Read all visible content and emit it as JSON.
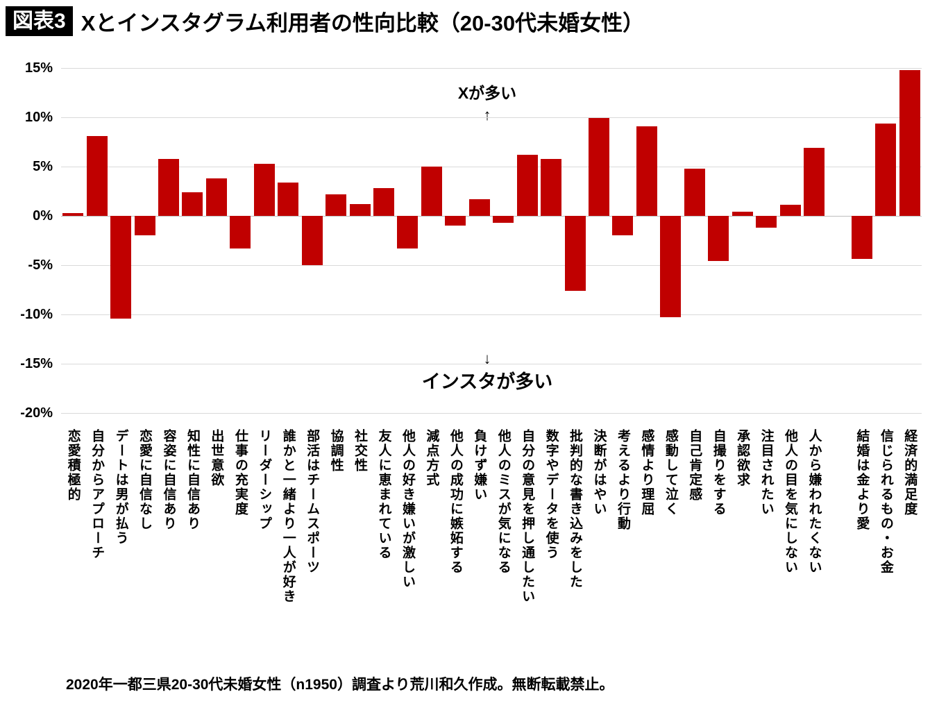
{
  "header": {
    "badge": "図表3",
    "title": "Xとインスタグラム利用者の性向比較（20-30代未婚女性）"
  },
  "footer": {
    "source": "2020年一都三県20-30代未婚女性（n1950）調査より荒川和久作成。無断転載禁止。"
  },
  "chart_data": {
    "type": "bar",
    "title": "Xとインスタグラム利用者の性向比較（20-30代未婚女性）",
    "bar_color": "#C00000",
    "grid": true,
    "legend": false,
    "ylim": [
      -20,
      15
    ],
    "yticks": [
      15,
      10,
      5,
      0,
      -5,
      -10,
      -15,
      -20
    ],
    "ytick_labels": [
      "15%",
      "10%",
      "5%",
      "0%",
      "-5%",
      "-10%",
      "-15%",
      "-20%"
    ],
    "annotations": {
      "top_label": "Xが多い",
      "top_arrow": "↑",
      "bottom_arrow": "↓",
      "bottom_label": "インスタが多い"
    },
    "categories": [
      "恋愛積極的",
      "自分からアプローチ",
      "デートは男が払う",
      "恋愛に自信なし",
      "容姿に自信あり",
      "知性に自信あり",
      "出世意欲",
      "仕事の充実度",
      "リーダーシップ",
      "誰かと一緒より一人が好き",
      "部活はチームスポーツ",
      "協調性",
      "社交性",
      "友人に恵まれている",
      "他人の好き嫌いが激しい",
      "減点方式",
      "他人の成功に嫉妬する",
      "負けず嫌い",
      "他人のミスが気になる",
      "自分の意見を押し通したい",
      "数字やデータを使う",
      "批判的な書き込みをした",
      "決断がはやい",
      "考えるより行動",
      "感情より理屈",
      "感動して泣く",
      "自己肯定感",
      "自撮りをする",
      "承認欲求",
      "注目されたい",
      "他人の目を気にしない",
      "人から嫌われたくない",
      "",
      "結婚は金より愛",
      "信じられるもの・お金",
      "経済的満足度"
    ],
    "values": [
      0.3,
      8.1,
      -10.4,
      -2.0,
      5.8,
      2.4,
      3.8,
      -3.3,
      5.3,
      3.4,
      -5.0,
      2.2,
      1.2,
      2.8,
      -3.3,
      5.0,
      -1.0,
      1.7,
      -0.7,
      6.2,
      5.8,
      -7.6,
      9.9,
      -2.0,
      9.1,
      -10.3,
      4.8,
      -4.6,
      0.4,
      -1.2,
      1.1,
      6.9,
      0,
      -4.4,
      9.4,
      14.8
    ],
    "source_note": "2020年一都三県20-30代未婚女性（n1950）調査より荒川和久作成。無断転載禁止。"
  }
}
